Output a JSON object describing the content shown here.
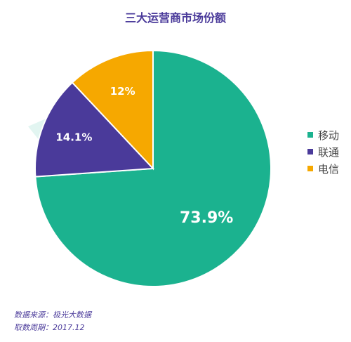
{
  "chart_data": {
    "type": "pie",
    "title": "三大运营商市场份额",
    "categories": [
      "移动",
      "联通",
      "电信"
    ],
    "values": [
      73.9,
      14.1,
      12
    ],
    "data_labels": [
      "73.9%",
      "14.1%",
      "12%"
    ],
    "colors": [
      "#1bb28f",
      "#4a3a9a",
      "#f6a800"
    ],
    "legend_position": "right"
  },
  "source": {
    "line1": "数据来源：极光大数据",
    "line2": "取数周期：2017.12"
  }
}
